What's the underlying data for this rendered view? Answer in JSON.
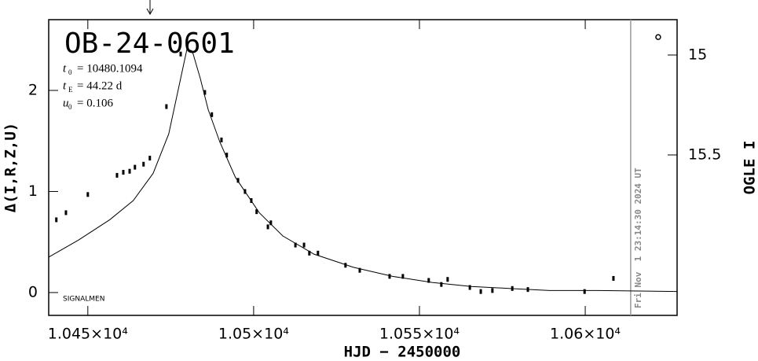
{
  "chart_data": {
    "type": "scatter",
    "title": "OB-24-0601",
    "parameters": [
      {
        "symbol": "t",
        "sub": "0",
        "text": "= 10480.1094"
      },
      {
        "symbol": "t",
        "sub": "E",
        "text": "= 44.22 d"
      },
      {
        "symbol": "u",
        "sub": "0",
        "text": "= 0.106"
      }
    ],
    "corner_note": "SIGNALMEN",
    "timestamp": "Fri Nov  1 23:14:30 2024 UT",
    "timestamp_x": 10613.7,
    "x_label": "HJD − 2450000",
    "y_label": "Δ(I,R,Z,U)",
    "y2_label": "OGLE I",
    "xlim": [
      10438.2,
      10627.7
    ],
    "ylim": [
      -0.226,
      2.7
    ],
    "y2lim": [
      16.303,
      14.823
    ],
    "xticks": [
      {
        "value": 10450,
        "label": "1.045×10⁴"
      },
      {
        "value": 10500,
        "label": "1.05×10⁴"
      },
      {
        "value": 10550,
        "label": "1.055×10⁴"
      },
      {
        "value": 10600,
        "label": "1.06×10⁴"
      }
    ],
    "yticks": [
      0,
      1,
      2
    ],
    "y2ticks": [
      15,
      15.5
    ],
    "series": [
      {
        "style": "points",
        "color": "#000000",
        "x": [
          10440.5,
          10443.4,
          10450.0,
          10458.8,
          10460.7,
          10462.6,
          10464.2,
          10466.8,
          10468.7,
          10473.7,
          10478.0,
          10485.3,
          10487.4,
          10490.3,
          10491.9,
          10495.3,
          10497.4,
          10499.3,
          10500.9,
          10504.3,
          10505.2,
          10512.6,
          10515.2,
          10516.8,
          10519.4,
          10527.7,
          10532.0,
          10541.0,
          10545.0,
          10552.8,
          10556.6,
          10558.5,
          10565.2,
          10568.5,
          10572.0,
          10578.0,
          10582.7,
          10599.8,
          10608.5
        ],
        "values": [
          0.72,
          0.79,
          0.97,
          1.16,
          1.19,
          1.2,
          1.24,
          1.27,
          1.33,
          1.84,
          2.36,
          1.98,
          1.76,
          1.51,
          1.36,
          1.11,
          1.0,
          0.91,
          0.8,
          0.65,
          0.69,
          0.47,
          0.47,
          0.39,
          0.39,
          0.27,
          0.22,
          0.16,
          0.16,
          0.12,
          0.08,
          0.13,
          0.05,
          0.01,
          0.02,
          0.04,
          0.03,
          0.01,
          0.14
        ]
      },
      {
        "style": "line",
        "color": "#000000",
        "x": [
          10438.2,
          10447.2,
          10456.6,
          10463.7,
          10469.7,
          10474.4,
          10478.0,
          10479.9,
          10481.5,
          10483.9,
          10486.3,
          10489.8,
          10494.5,
          10501.7,
          10508.8,
          10518.2,
          10530.1,
          10541.9,
          10553.8,
          10565.6,
          10577.5,
          10589.3,
          10603.6,
          10627.7
        ],
        "values": [
          0.35,
          0.52,
          0.72,
          0.91,
          1.18,
          1.57,
          2.12,
          2.41,
          2.39,
          2.12,
          1.81,
          1.49,
          1.14,
          0.79,
          0.56,
          0.38,
          0.25,
          0.16,
          0.1,
          0.06,
          0.04,
          0.02,
          0.02,
          0.01
        ]
      },
      {
        "style": "circle",
        "color": "#000000",
        "axis": "y2",
        "x": [
          10622.0
        ],
        "values": [
          14.91
        ]
      }
    ]
  }
}
